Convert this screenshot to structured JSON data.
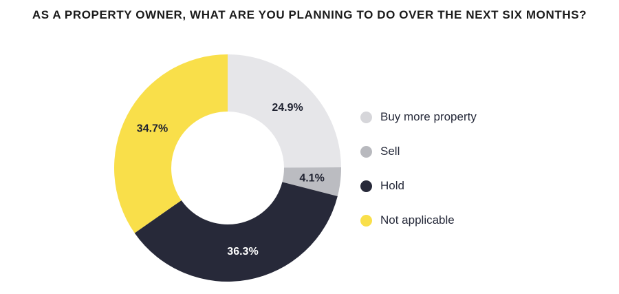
{
  "chart_data": {
    "type": "pie",
    "variant": "donut",
    "title": "AS A PROPERTY OWNER, WHAT ARE YOU PLANNING TO DO OVER THE NEXT SIX MONTHS?",
    "unit": "%",
    "categories": [
      "Buy more property",
      "Sell",
      "Hold",
      "Not applicable"
    ],
    "values": [
      24.9,
      4.1,
      36.3,
      34.7
    ],
    "labels": [
      "24.9%",
      "4.1%",
      "36.3%",
      "34.7%"
    ],
    "colors": [
      "#e6e6e9",
      "#bbbcc1",
      "#272939",
      "#f9df4a"
    ],
    "label_colors": [
      "#1f2230",
      "#1f2230",
      "#ffffff",
      "#1f2230"
    ],
    "legend_position": "right",
    "start": "top, clockwise"
  },
  "legend": {
    "items": [
      {
        "label": "Buy more property",
        "color": "#d6d6da"
      },
      {
        "label": "Sell",
        "color": "#b8b9be"
      },
      {
        "label": "Hold",
        "color": "#272939"
      },
      {
        "label": "Not applicable",
        "color": "#f9df4a"
      }
    ]
  }
}
